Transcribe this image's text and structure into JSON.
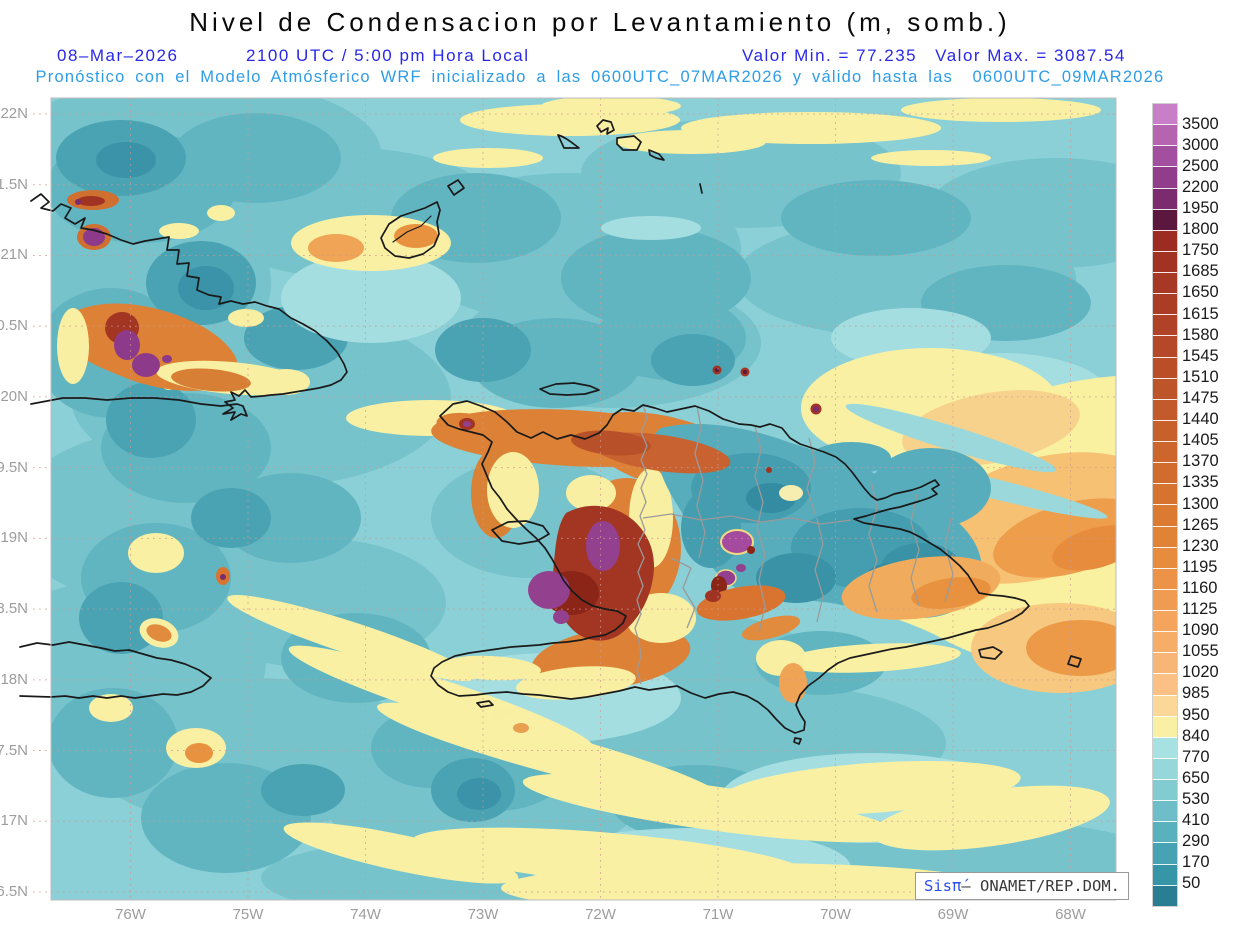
{
  "header": {
    "title": "Nivel de Condensacion por Levantamiento (m, somb.)",
    "date": "08–Mar–2026",
    "time": "2100 UTC / 5:00 pm Hora Local",
    "value_min": "Valor Min. = 77.235",
    "value_max": "Valor Max. = 3087.54",
    "subtitle": "Pronóstico con el Modelo Atmósferico WRF inicializado a las 0600UTC_07MAR2026 y válido hasta las  0600UTC_09MAR2026"
  },
  "map_info": {
    "units": "m",
    "value_min": 77.235,
    "value_max": 3087.54,
    "model": "WRF"
  },
  "axes": {
    "lat_labels": [
      "22N",
      "1.5N",
      "21N",
      "0.5N",
      "20N",
      "9.5N",
      "19N",
      "8.5N",
      "18N",
      "7.5N",
      "17N",
      "6.5N"
    ],
    "lon_labels": [
      "76W",
      "75W",
      "74W",
      "73W",
      "72W",
      "71W",
      "70W",
      "69W",
      "68W"
    ]
  },
  "colorbar": {
    "levels": [
      "3500",
      "3000",
      "2500",
      "2200",
      "1950",
      "1800",
      "1750",
      "1685",
      "1650",
      "1615",
      "1580",
      "1545",
      "1510",
      "1475",
      "1440",
      "1405",
      "1370",
      "1335",
      "1300",
      "1265",
      "1230",
      "1195",
      "1160",
      "1125",
      "1090",
      "1055",
      "1020",
      "985",
      "950",
      "840",
      "770",
      "650",
      "530",
      "410",
      "290",
      "170",
      "50"
    ],
    "colors": [
      "#C87FC8",
      "#B565B0",
      "#A34F9F",
      "#903E8B",
      "#7A2C6E",
      "#5C173E",
      "#9D2B21",
      "#A23323",
      "#A73825",
      "#AB3D26",
      "#B04327",
      "#B54828",
      "#BA4E29",
      "#BE542A",
      "#C35A2B",
      "#C8602C",
      "#CD662D",
      "#D16C2E",
      "#D6732F",
      "#DB7A31",
      "#E18336",
      "#E78B3E",
      "#EC9348",
      "#F09B52",
      "#F4A45C",
      "#F6AD68",
      "#F8B676",
      "#FAC084",
      "#FBD898",
      "#F9F0A4",
      "#A8E1E2",
      "#95D7DA",
      "#81CBD1",
      "#6DBEC8",
      "#59B1BE",
      "#47A3B3",
      "#3795A8",
      "#297E93"
    ]
  },
  "watermark": {
    "brand": "Sisπ́",
    "dash": "– ",
    "org": "ONAMET/REP.DOM."
  }
}
